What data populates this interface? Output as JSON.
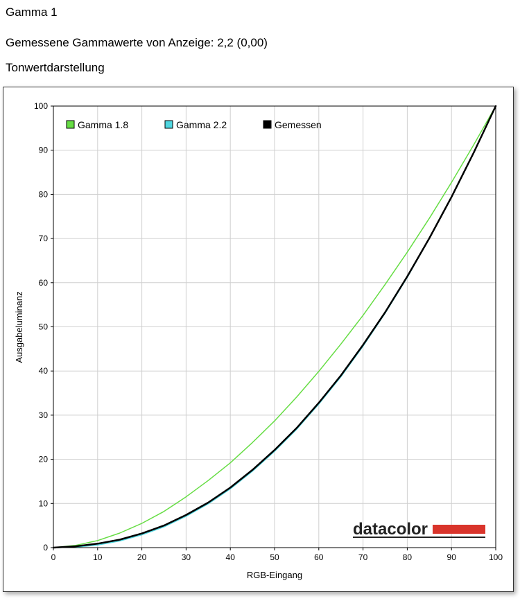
{
  "header": {
    "title": "Gamma 1",
    "measured": "Gemessene Gammawerte von Anzeige: 2,2 (0,00)",
    "section": "Tonwertdarstellung"
  },
  "logo": {
    "text": "datacolor",
    "bar_color": "#d9342b"
  },
  "chart_data": {
    "type": "line",
    "xlabel": "RGB-Eingang",
    "ylabel": "Ausgabeluminanz",
    "xlim": [
      0,
      100
    ],
    "ylim": [
      0,
      100
    ],
    "xticks": [
      0,
      10,
      20,
      30,
      40,
      50,
      60,
      70,
      80,
      90,
      100
    ],
    "yticks": [
      0,
      10,
      20,
      30,
      40,
      50,
      60,
      70,
      80,
      90,
      100
    ],
    "grid": true,
    "legend_position": "top-left",
    "series": [
      {
        "name": "Gamma 1.8",
        "color": "#66dd44",
        "x": [
          0,
          5,
          10,
          15,
          20,
          25,
          30,
          35,
          40,
          45,
          50,
          55,
          60,
          65,
          70,
          75,
          80,
          85,
          90,
          95,
          100
        ],
        "y": [
          0,
          0.5,
          1.6,
          3.3,
          5.5,
          8.2,
          11.5,
          15.2,
          19.2,
          23.8,
          28.7,
          34.1,
          39.9,
          46.1,
          52.6,
          59.6,
          66.9,
          74.6,
          82.7,
          91.2,
          100
        ]
      },
      {
        "name": "Gamma 2.2",
        "color": "#4fd6e0",
        "x": [
          0,
          5,
          10,
          15,
          20,
          25,
          30,
          35,
          40,
          45,
          50,
          55,
          60,
          65,
          70,
          75,
          80,
          85,
          90,
          95,
          100
        ],
        "y": [
          0,
          0.1,
          0.6,
          1.5,
          2.9,
          4.7,
          7.1,
          9.9,
          13.3,
          17.3,
          21.8,
          26.8,
          32.5,
          38.7,
          45.6,
          53.1,
          61.2,
          70.0,
          79.3,
          89.3,
          100
        ]
      },
      {
        "name": "Gemessen",
        "color": "#000000",
        "x": [
          0,
          5,
          10,
          15,
          20,
          25,
          30,
          35,
          40,
          45,
          50,
          55,
          60,
          65,
          70,
          75,
          80,
          85,
          90,
          95,
          100
        ],
        "y": [
          0,
          0.3,
          0.9,
          1.8,
          3.2,
          5.0,
          7.4,
          10.2,
          13.6,
          17.6,
          22.1,
          27.1,
          32.8,
          39.0,
          45.9,
          53.3,
          61.4,
          70.1,
          79.4,
          89.4,
          100
        ]
      }
    ]
  }
}
